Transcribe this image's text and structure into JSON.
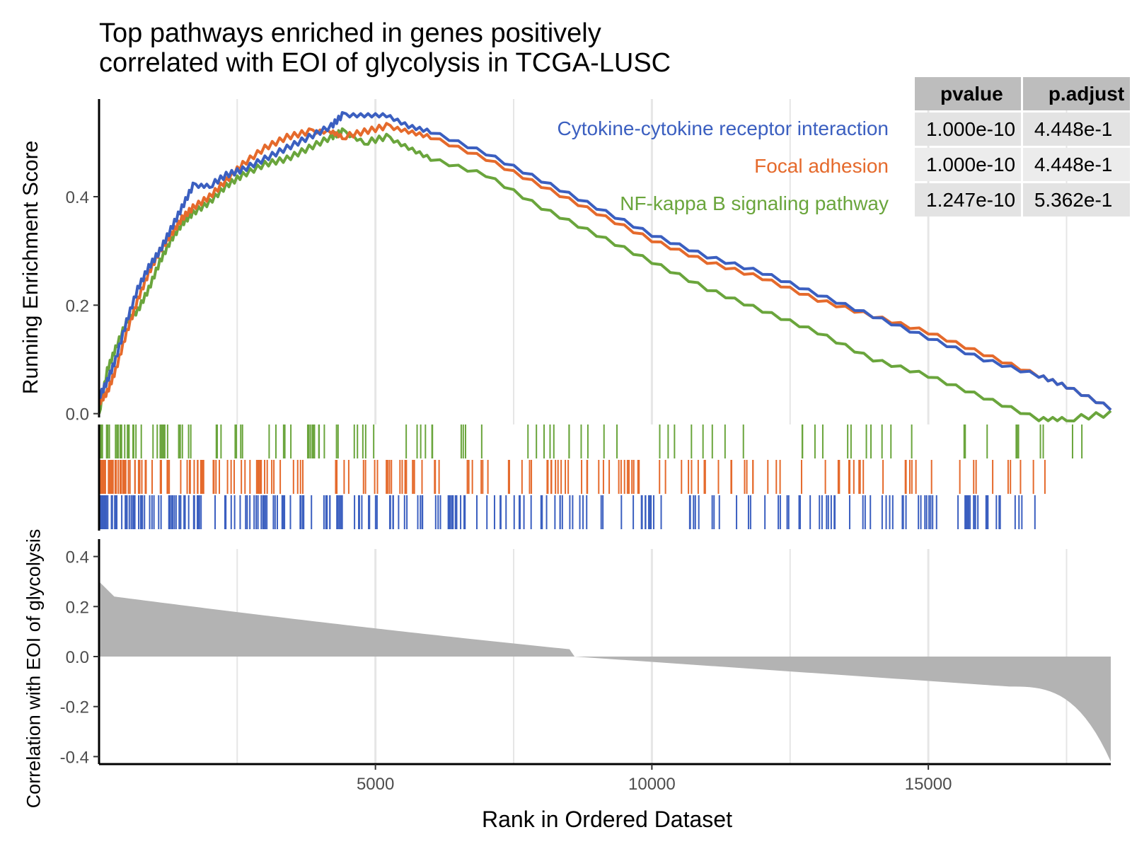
{
  "chart_data": {
    "type": "line",
    "title": [
      "Top pathways enriched in genes positively",
      "correlated with EOI of glycolysis in TCGA-LUSC"
    ],
    "xlabel": "Rank in Ordered Dataset",
    "ylabel_top": "Running Enrichment Score",
    "ylabel_bottom": "Correlation with EOI of glycolysis",
    "xlim": [
      1,
      18300
    ],
    "ylim_top": [
      -0.02,
      0.58
    ],
    "ylim_bottom": [
      -0.43,
      0.43
    ],
    "x_ticks": [
      5000,
      10000,
      15000
    ],
    "y_ticks_top": [
      0.0,
      0.2,
      0.4
    ],
    "y_ticks_bottom": [
      -0.4,
      -0.2,
      0.0,
      0.2,
      0.4
    ],
    "grid": "vertical",
    "series": [
      {
        "name": "Cytokine-cytokine receptor interaction",
        "color": "#3b5fc0",
        "x": [
          1,
          150,
          300,
          500,
          700,
          900,
          1100,
          1300,
          1500,
          1700,
          2000,
          2300,
          2600,
          3000,
          3400,
          3800,
          4200,
          4400,
          4800,
          5200,
          5600,
          6000,
          7000,
          8000,
          9000,
          10000,
          11000,
          12000,
          13000,
          14000,
          15000,
          16000,
          17000,
          17500,
          18300
        ],
        "y": [
          0.03,
          0.06,
          0.1,
          0.17,
          0.23,
          0.27,
          0.3,
          0.34,
          0.38,
          0.42,
          0.42,
          0.44,
          0.45,
          0.47,
          0.49,
          0.51,
          0.53,
          0.55,
          0.55,
          0.55,
          0.53,
          0.52,
          0.48,
          0.43,
          0.38,
          0.33,
          0.29,
          0.26,
          0.22,
          0.18,
          0.14,
          0.1,
          0.07,
          0.05,
          0.01
        ]
      },
      {
        "name": "Focal adhesion",
        "color": "#e56a2c",
        "x": [
          1,
          150,
          300,
          500,
          700,
          900,
          1100,
          1300,
          1500,
          1700,
          2000,
          2300,
          2600,
          3000,
          3400,
          3800,
          4200,
          4400,
          4800,
          5200,
          5600,
          6000,
          7000,
          8000,
          9000,
          10000,
          11000,
          12000,
          13000,
          14000,
          15000,
          16000,
          17000,
          17500,
          18300
        ],
        "y": [
          0.02,
          0.04,
          0.08,
          0.15,
          0.21,
          0.26,
          0.3,
          0.33,
          0.36,
          0.38,
          0.4,
          0.43,
          0.46,
          0.49,
          0.51,
          0.52,
          0.52,
          0.51,
          0.52,
          0.53,
          0.52,
          0.51,
          0.47,
          0.42,
          0.37,
          0.32,
          0.28,
          0.25,
          0.21,
          0.18,
          0.15,
          0.11,
          0.07,
          0.05,
          0.01
        ]
      },
      {
        "name": "NF-kappa B signaling pathway",
        "color": "#6aa53c",
        "x": [
          1,
          150,
          300,
          500,
          700,
          900,
          1100,
          1300,
          1500,
          1700,
          2000,
          2300,
          2600,
          3000,
          3400,
          3800,
          4200,
          4400,
          4800,
          5200,
          5600,
          6000,
          7000,
          8000,
          9000,
          10000,
          11000,
          12000,
          13000,
          14000,
          15000,
          16000,
          17000,
          17500,
          18300
        ],
        "y": [
          0.0,
          0.08,
          0.12,
          0.17,
          0.19,
          0.23,
          0.28,
          0.32,
          0.35,
          0.37,
          0.39,
          0.42,
          0.44,
          0.46,
          0.47,
          0.49,
          0.51,
          0.52,
          0.5,
          0.51,
          0.49,
          0.47,
          0.44,
          0.38,
          0.33,
          0.28,
          0.23,
          0.19,
          0.15,
          0.1,
          0.07,
          0.03,
          -0.01,
          -0.01,
          0.0
        ]
      }
    ],
    "table": {
      "columns": [
        "pvalue",
        "p.adjust"
      ],
      "rows": [
        [
          "1.000e-10",
          "4.448e-1"
        ],
        [
          "1.000e-10",
          "4.448e-1"
        ],
        [
          "1.247e-10",
          "5.362e-1"
        ]
      ]
    }
  }
}
